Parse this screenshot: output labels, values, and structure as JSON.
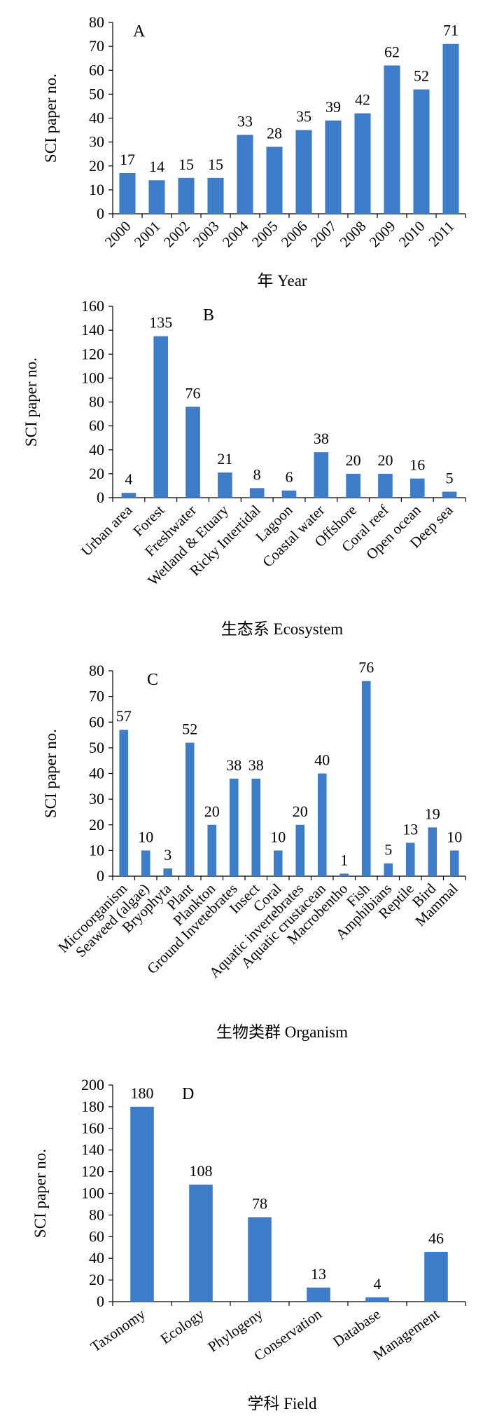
{
  "chart_data": [
    {
      "type": "bar",
      "panel": "A",
      "ylabel": "SCI  paper no.",
      "xlabel": "年  Year",
      "ylim": [
        0,
        80
      ],
      "yticks": [
        0,
        10,
        20,
        30,
        40,
        50,
        60,
        70,
        80
      ],
      "categories": [
        "2000",
        "2001",
        "2002",
        "2003",
        "2004",
        "2005",
        "2006",
        "2007",
        "2008",
        "2009",
        "2010",
        "2011"
      ],
      "values": [
        17,
        14,
        15,
        15,
        33,
        28,
        35,
        39,
        42,
        62,
        52,
        71
      ],
      "color": "#3d7cc9",
      "grid": false
    },
    {
      "type": "bar",
      "panel": "B",
      "ylabel": "SCI paper no.",
      "xlabel": "生态系  Ecosystem",
      "ylim": [
        0,
        160
      ],
      "yticks": [
        0,
        20,
        40,
        60,
        80,
        100,
        120,
        140,
        160
      ],
      "categories": [
        "Urban area",
        "Forest",
        "Freshwater",
        "Wetland & Etuary",
        "Ricky Intertidal",
        "Lagoon",
        "Coastal water",
        "Offshore",
        "Coral reef",
        "Open ocean",
        "Deep sea"
      ],
      "values": [
        4,
        135,
        76,
        21,
        8,
        6,
        38,
        20,
        20,
        16,
        5
      ],
      "color": "#3d7cc9",
      "grid": false
    },
    {
      "type": "bar",
      "panel": "C",
      "ylabel": "SCI paper no.",
      "xlabel": "生物类群 Organism",
      "ylim": [
        0,
        80
      ],
      "yticks": [
        0,
        10,
        20,
        30,
        40,
        50,
        60,
        70,
        80
      ],
      "categories": [
        "Microorganism",
        "Seaweed (algae)",
        "Bryophyta",
        "Plant",
        "Plankton",
        "Ground Invetebrates",
        "Insect",
        "Coral",
        "Aquatic invertebrates",
        "Aquatic crustacean",
        "Macrobentho",
        "Fish",
        "Amphibians",
        "Reptile",
        "Bird",
        "Mammal"
      ],
      "values": [
        57,
        10,
        3,
        52,
        20,
        38,
        38,
        10,
        20,
        40,
        1,
        76,
        5,
        13,
        19,
        10
      ],
      "color": "#3d7cc9",
      "grid": false
    },
    {
      "type": "bar",
      "panel": "D",
      "ylabel": "SCI paper no.",
      "xlabel": "学科  Field",
      "ylim": [
        0,
        200
      ],
      "yticks": [
        0,
        20,
        40,
        60,
        80,
        100,
        120,
        140,
        160,
        180,
        200
      ],
      "categories": [
        "Taxonomy",
        "Ecology",
        "Phylogeny",
        "Conservation",
        "Database",
        "Management"
      ],
      "values": [
        180,
        108,
        78,
        13,
        4,
        46
      ],
      "color": "#3d7cc9",
      "grid": false
    }
  ]
}
